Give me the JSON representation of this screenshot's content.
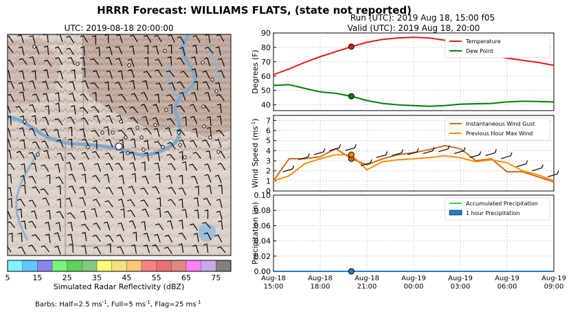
{
  "title": "HRRR Forecast: WILLIAMS FLATS, (state not reported)",
  "map": {
    "subtitle": "UTC: 2019-08-18 20:00:00",
    "colorbar_label": "Simulated Radar Reflectivity (dBZ)",
    "colorbar_colors": [
      "#7ff4ff",
      "#63c8ff",
      "#8a84f4",
      "#7af47a",
      "#5bd65b",
      "#83c983",
      "#ffff74",
      "#f4e07c",
      "#ffc679",
      "#ff8080",
      "#e87272",
      "#e08888",
      "#ff80ff",
      "#c8a8e6",
      "#808080"
    ],
    "colorbar_ticks": [
      "5",
      "15",
      "25",
      "35",
      "45",
      "55",
      "65",
      "75"
    ],
    "barb_note": "Barbs: Half=2.5 ms",
    "barb_note_sup1": "-1",
    "barb_note_mid": ", Full=5 ms",
    "barb_note_sup2": "-1",
    "barb_note_mid2": ", Flag=25 ms",
    "barb_note_sup3": "-1"
  },
  "run_title": "Run (UTC): 2019 Aug 18, 15:00 f05",
  "valid_title": "Valid (UTC): 2019 Aug 18, 20:00",
  "x_tick_labels": [
    [
      "Aug-18",
      "15:00"
    ],
    [
      "Aug-18",
      "18:00"
    ],
    [
      "Aug-18",
      "21:00"
    ],
    [
      "Aug-19",
      "00:00"
    ],
    [
      "Aug-19",
      "03:00"
    ],
    [
      "Aug-19",
      "06:00"
    ],
    [
      "Aug-19",
      "09:00"
    ]
  ],
  "chart_data": [
    {
      "type": "line",
      "ylabel": "Degrees (F)",
      "ylim": [
        36,
        90
      ],
      "yticks": [
        40,
        50,
        60,
        70,
        80,
        90
      ],
      "x_hours": [
        0,
        1,
        2,
        3,
        4,
        5,
        6,
        7,
        8,
        9,
        10,
        11,
        12,
        13,
        14,
        15,
        16,
        17,
        18
      ],
      "current_hour": 5,
      "series": [
        {
          "name": "Temperature",
          "color": "#e31a1c",
          "values": [
            61,
            65,
            69.5,
            73.5,
            77,
            80.5,
            83.5,
            85.5,
            86.5,
            87,
            86.5,
            85,
            79.5,
            76,
            74.5,
            72.5,
            71,
            69.5,
            67.5
          ]
        },
        {
          "name": "Dew Point",
          "color": "#008000",
          "values": [
            53.5,
            54,
            51.5,
            49,
            48,
            46,
            43,
            41,
            40,
            39.5,
            39,
            39.5,
            40.5,
            40.8,
            41,
            42,
            42.5,
            42.3,
            42
          ]
        }
      ],
      "legend_position": "upper right"
    },
    {
      "type": "line",
      "ylabel": "Wind Speed (ms",
      "ylabel_sup": "-1",
      "ylabel_end": ")",
      "ylim": [
        0,
        7.5
      ],
      "yticks": [
        0,
        1,
        2,
        3,
        4,
        5,
        6,
        7
      ],
      "x_hours": [
        0,
        1,
        2,
        3,
        4,
        5,
        6,
        7,
        8,
        9,
        10,
        11,
        12,
        13,
        14,
        15,
        16,
        17,
        18
      ],
      "current_hour": 5,
      "series": [
        {
          "name": "Instantaneous Wind Gust",
          "color": "#d2691e",
          "values": [
            1.0,
            3.2,
            3.2,
            3.4,
            4.2,
            3.2,
            2.6,
            3.2,
            3.6,
            3.8,
            4.1,
            4.5,
            4.2,
            3.0,
            3.2,
            1.9,
            1.9,
            1.4,
            0.9
          ]
        },
        {
          "name": "Previous Hour Max Wind",
          "color": "#ff8c00",
          "values": [
            1.0,
            1.5,
            2.7,
            3.2,
            3.6,
            3.6,
            2.1,
            2.9,
            3.1,
            3.2,
            3.3,
            3.5,
            3.3,
            2.9,
            3.1,
            2.8,
            2.0,
            1.6,
            1.0
          ]
        }
      ],
      "legend_position": "upper right"
    },
    {
      "type": "line",
      "ylabel": "Precipitation (in)",
      "ylim": [
        0,
        0.1
      ],
      "yticks": [
        "0.00",
        "0.02",
        "0.04",
        "0.06",
        "0.08",
        "0.10"
      ],
      "x_hours": [
        0,
        1,
        2,
        3,
        4,
        5,
        6,
        7,
        8,
        9,
        10,
        11,
        12,
        13,
        14,
        15,
        16,
        17,
        18
      ],
      "current_hour": 5,
      "series": [
        {
          "name": "Accumulated Precipitation",
          "color": "#33cc33",
          "values": [
            0,
            0,
            0,
            0,
            0,
            0,
            0,
            0,
            0,
            0,
            0,
            0,
            0,
            0,
            0,
            0,
            0,
            0,
            0
          ]
        },
        {
          "name": "1 hour Precipitation",
          "color": "#1e7fd6",
          "values": [
            0,
            0,
            0,
            0,
            0,
            0,
            0,
            0,
            0,
            0,
            0,
            0,
            0,
            0,
            0,
            0,
            0,
            0,
            0
          ]
        }
      ],
      "legend_position": "upper right"
    }
  ]
}
